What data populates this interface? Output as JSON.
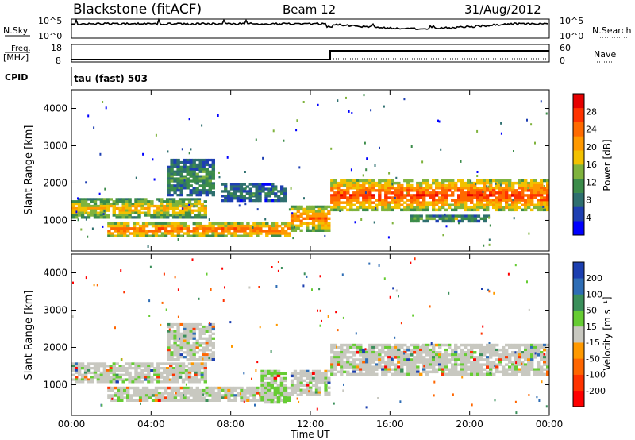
{
  "header": {
    "title": "Blackstone (fitACF)",
    "beam": "Beam 12",
    "date": "31/Aug/2012"
  },
  "top_panels": {
    "nsky_label": "N.Sky",
    "nsky_ticks": [
      "10^5",
      "10^0"
    ],
    "nsearch_label": "N.Search",
    "nsearch_ticks": [
      "10^5",
      "10^0"
    ],
    "freq_label_1": "Freq.",
    "freq_label_2": "[MHz]",
    "freq_ticks": [
      "18",
      "8"
    ],
    "nave_label": "Nave",
    "nave_ticks": [
      "60",
      "0"
    ],
    "cpid_label": "CPID",
    "cpid_value": "tau (fast) 503"
  },
  "colors": {
    "power_scale": [
      "#0000ff",
      "#1e3fb2",
      "#2e6f6f",
      "#3c8c4a",
      "#7fb33d",
      "#f2c100",
      "#ff9900",
      "#ff6a00",
      "#ff3300",
      "#e60000"
    ],
    "velocity_scale": [
      "#1c3fb0",
      "#2e6db5",
      "#3a8f5a",
      "#66cc33",
      "#c8c8c0",
      "#ff9900",
      "#ff6600",
      "#ff3300",
      "#ff0000"
    ]
  },
  "chart_data": [
    {
      "type": "heatmap",
      "name": "power",
      "ylabel": "Slant Range [km]",
      "yticks": [
        "4000",
        "3000",
        "2000",
        "1000"
      ],
      "colorbar_label": "Power [dB]",
      "colorbar_ticks": [
        "28",
        "24",
        "20",
        "16",
        "12",
        "8",
        "4"
      ],
      "x_range_hours": [
        0,
        24
      ],
      "y_range_km": [
        180,
        4500
      ],
      "bands": [
        {
          "t0": 0.0,
          "t1": 6.8,
          "r0": 1050,
          "r1": 1600,
          "level": 0.62
        },
        {
          "t0": 4.8,
          "t1": 7.2,
          "r0": 1650,
          "r1": 2650,
          "level": 0.35
        },
        {
          "t0": 1.8,
          "t1": 11.0,
          "r0": 550,
          "r1": 950,
          "level": 0.82
        },
        {
          "t0": 7.5,
          "t1": 10.8,
          "r0": 1500,
          "r1": 2000,
          "level": 0.25
        },
        {
          "t0": 11.0,
          "t1": 13.0,
          "r0": 700,
          "r1": 1400,
          "level": 0.78
        },
        {
          "t0": 13.0,
          "t1": 24.0,
          "r0": 1250,
          "r1": 2100,
          "level": 0.9
        },
        {
          "t0": 17.0,
          "t1": 21.0,
          "r0": 950,
          "r1": 1150,
          "level": 0.4
        }
      ]
    },
    {
      "type": "heatmap",
      "name": "velocity",
      "ylabel": "Slant Range [km]",
      "yticks": [
        "4000",
        "3000",
        "2000",
        "1000"
      ],
      "colorbar_label": "Velocity [m s⁻¹]",
      "colorbar_ticks": [
        "200",
        "100",
        "50",
        "15",
        "-15",
        "-50",
        "-100",
        "-200"
      ],
      "x_range_hours": [
        0,
        24
      ],
      "y_range_km": [
        180,
        4500
      ],
      "xticks": [
        "00:00",
        "04:00",
        "08:00",
        "12:00",
        "16:00",
        "20:00",
        "00:00"
      ],
      "xlabel": "Time UT",
      "bands": [
        {
          "t0": 0.0,
          "t1": 6.8,
          "r0": 1050,
          "r1": 1600,
          "level": 0.45
        },
        {
          "t0": 4.8,
          "t1": 7.2,
          "r0": 1650,
          "r1": 2650,
          "level": 0.5
        },
        {
          "t0": 1.8,
          "t1": 11.0,
          "r0": 550,
          "r1": 950,
          "level": 0.48
        },
        {
          "t0": 9.5,
          "t1": 10.8,
          "r0": 500,
          "r1": 1400,
          "level": 0.38
        },
        {
          "t0": 11.0,
          "t1": 13.0,
          "r0": 700,
          "r1": 1400,
          "level": 0.5
        },
        {
          "t0": 13.0,
          "t1": 24.0,
          "r0": 1250,
          "r1": 2100,
          "level": 0.5
        }
      ]
    }
  ]
}
